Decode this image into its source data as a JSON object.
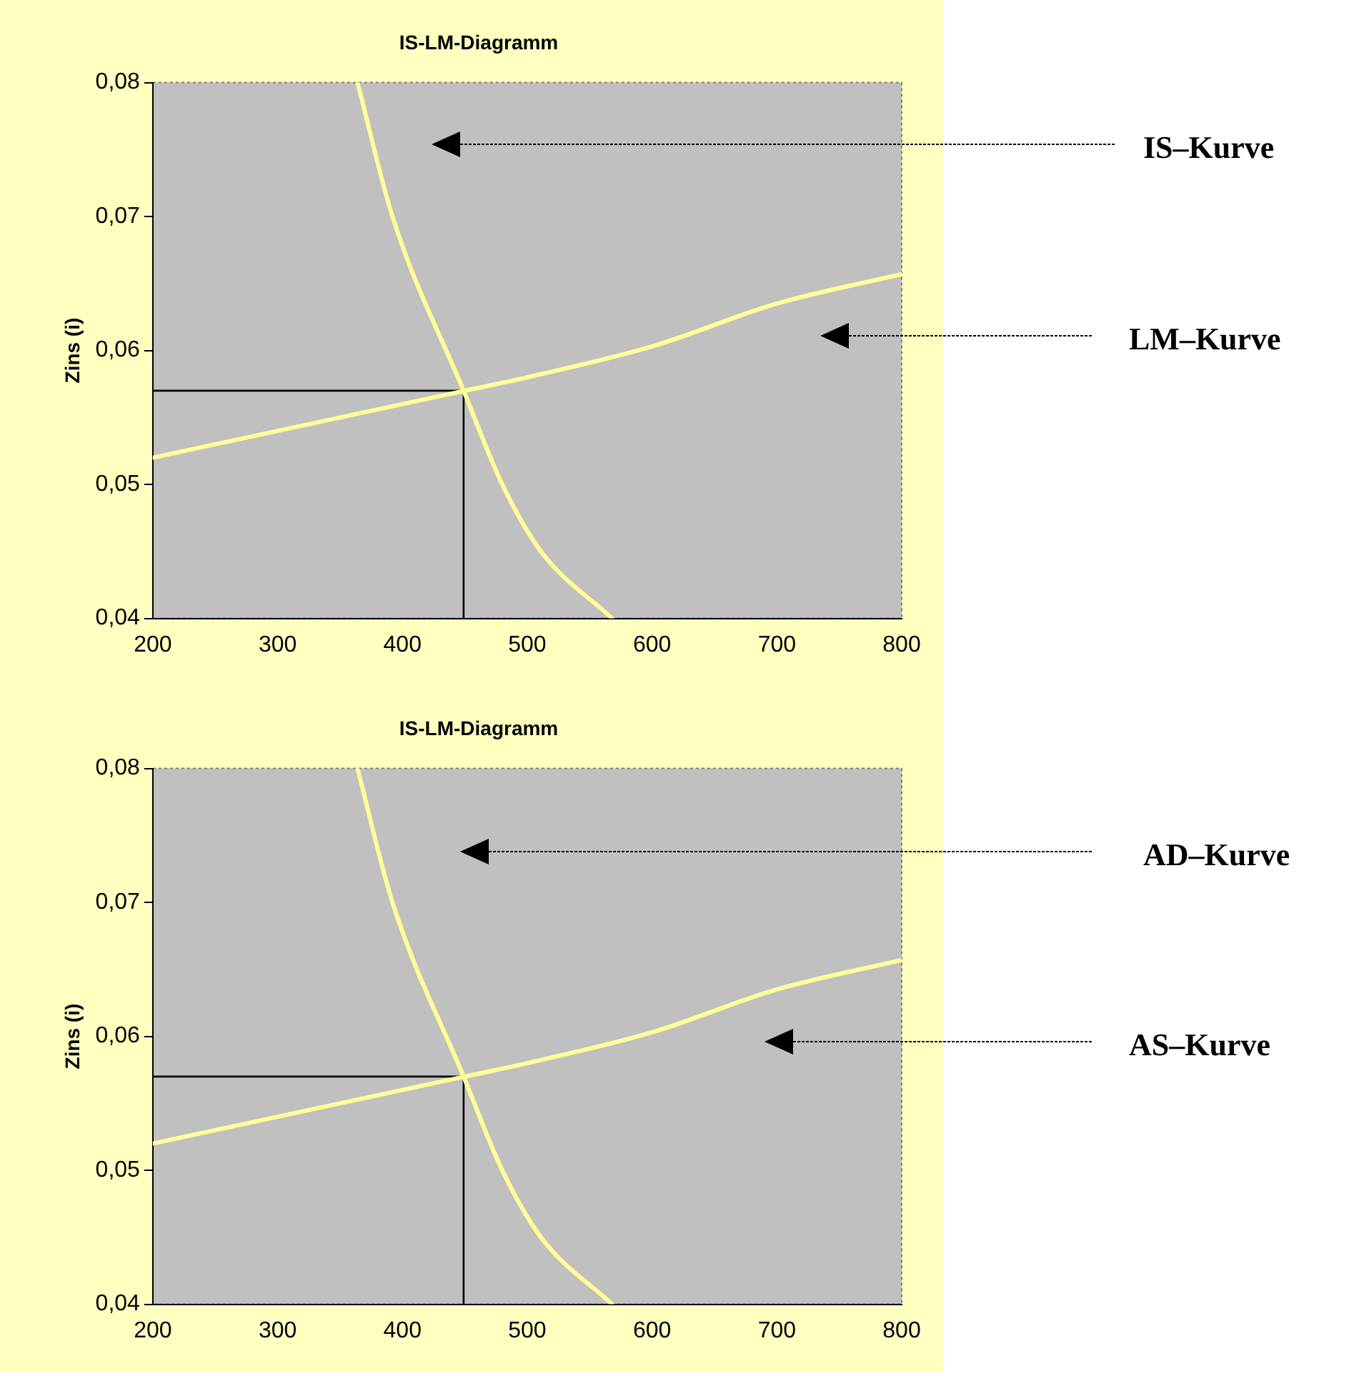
{
  "chart_data": [
    {
      "type": "line",
      "title": "IS-LM-Diagramm",
      "ylabel": "Zins (i)",
      "marker": "none",
      "line_style": "solid",
      "grid": false,
      "legend": false,
      "xlim": [
        200,
        800
      ],
      "xticks": [
        200,
        300,
        400,
        500,
        600,
        700,
        800
      ],
      "ylim": [
        0.04,
        0.08
      ],
      "yticks": [
        {
          "value": 0.04,
          "label": "0,04"
        },
        {
          "value": 0.05,
          "label": "0,05"
        },
        {
          "value": 0.06,
          "label": "0,06"
        },
        {
          "value": 0.07,
          "label": "0,07"
        },
        {
          "value": 0.08,
          "label": "0,08"
        }
      ],
      "series": [
        {
          "color": "#ffff99",
          "x": [
            364,
            392,
            449,
            480,
            511,
            568
          ],
          "values": [
            0.08,
            0.07,
            0.057,
            0.05,
            0.045,
            0.04
          ]
        },
        {
          "color": "#ffff99",
          "x": [
            200,
            300,
            450,
            500,
            600,
            700,
            800
          ],
          "values": [
            0.052,
            0.054,
            0.057,
            0.058,
            0.0603,
            0.0635,
            0.0657
          ]
        },
        {
          "color": "#000000",
          "x": [
            200,
            449
          ],
          "values": [
            0.057,
            0.057
          ]
        },
        {
          "color": "#000000",
          "x": [
            449,
            449
          ],
          "values": [
            0.04,
            0.057
          ]
        }
      ],
      "annotations": [
        "IS–Kurve",
        "LM–Kurve"
      ]
    },
    {
      "type": "line",
      "title": "IS-LM-Diagramm",
      "ylabel": "Zins (i)",
      "marker": "none",
      "line_style": "solid",
      "grid": false,
      "legend": false,
      "xlim": [
        200,
        800
      ],
      "xticks": [
        200,
        300,
        400,
        500,
        600,
        700,
        800
      ],
      "ylim": [
        0.04,
        0.08
      ],
      "yticks": [
        {
          "value": 0.04,
          "label": "0,04"
        },
        {
          "value": 0.05,
          "label": "0,05"
        },
        {
          "value": 0.06,
          "label": "0,06"
        },
        {
          "value": 0.07,
          "label": "0,07"
        },
        {
          "value": 0.08,
          "label": "0,08"
        }
      ],
      "series": [
        {
          "color": "#ffff99",
          "x": [
            364,
            392,
            449,
            480,
            511,
            568
          ],
          "values": [
            0.08,
            0.07,
            0.057,
            0.05,
            0.045,
            0.04
          ]
        },
        {
          "color": "#ffff99",
          "x": [
            200,
            300,
            450,
            500,
            600,
            700,
            800
          ],
          "values": [
            0.052,
            0.054,
            0.057,
            0.058,
            0.0603,
            0.0635,
            0.0657
          ]
        },
        {
          "color": "#000000",
          "x": [
            200,
            449
          ],
          "values": [
            0.057,
            0.057
          ]
        },
        {
          "color": "#000000",
          "x": [
            449,
            449
          ],
          "values": [
            0.04,
            0.057
          ]
        }
      ],
      "annotations": [
        "AD–Kurve",
        "AS–Kurve"
      ]
    }
  ]
}
